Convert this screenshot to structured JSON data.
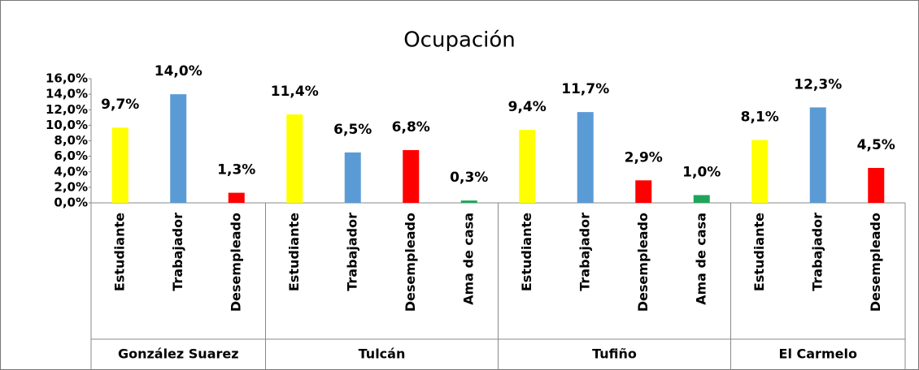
{
  "chart_data": {
    "type": "bar",
    "title": "Ocupación",
    "ylim": [
      0,
      16
    ],
    "yticks": [
      {
        "value": 0,
        "label": "0,0%"
      },
      {
        "value": 2,
        "label": "2,0%"
      },
      {
        "value": 4,
        "label": "4,0%"
      },
      {
        "value": 6,
        "label": "6,0%"
      },
      {
        "value": 8,
        "label": "8,0%"
      },
      {
        "value": 10,
        "label": "10,0%"
      },
      {
        "value": 12,
        "label": "12,0%"
      },
      {
        "value": 14,
        "label": "14,0%"
      },
      {
        "value": 16,
        "label": "16,0%"
      }
    ],
    "groups": [
      {
        "name": "González Suarez",
        "categories": [
          "Estudiante",
          "Trabajador",
          "Desempleado"
        ],
        "values": [
          9.7,
          14.0,
          1.3
        ],
        "value_labels": [
          "9,7%",
          "14,0%",
          "1,3%"
        ],
        "colors": [
          "#ffff00",
          "#5b9bd5",
          "#ff0000"
        ]
      },
      {
        "name": "Tulcán",
        "categories": [
          "Estudiante",
          "Trabajador",
          "Desempleado",
          "Ama de casa"
        ],
        "values": [
          11.4,
          6.5,
          6.8,
          0.3
        ],
        "value_labels": [
          "11,4%",
          "6,5%",
          "6,8%",
          "0,3%"
        ],
        "colors": [
          "#ffff00",
          "#5b9bd5",
          "#ff0000",
          "#1fa55a"
        ]
      },
      {
        "name": "Tufiño",
        "categories": [
          "Estudiante",
          "Trabajador",
          "Desempleado",
          "Ama de casa"
        ],
        "values": [
          9.4,
          11.7,
          2.9,
          1.0
        ],
        "value_labels": [
          "9,4%",
          "11,7%",
          "2,9%",
          "1,0%"
        ],
        "colors": [
          "#ffff00",
          "#5b9bd5",
          "#ff0000",
          "#1fa55a"
        ]
      },
      {
        "name": "El Carmelo",
        "categories": [
          "Estudiante",
          "Trabajador",
          "Desempleado"
        ],
        "values": [
          8.1,
          12.3,
          4.5
        ],
        "value_labels": [
          "8,1%",
          "12,3%",
          "4,5%"
        ],
        "colors": [
          "#ffff00",
          "#5b9bd5",
          "#ff0000"
        ]
      }
    ]
  }
}
